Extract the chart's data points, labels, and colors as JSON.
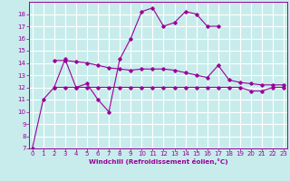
{
  "xlabel": "Windchill (Refroidissement éolien,°C)",
  "bg_color": "#c8ecec",
  "grid_color": "#ffffff",
  "line_color": "#990099",
  "x_values": [
    0,
    1,
    2,
    3,
    4,
    5,
    6,
    7,
    8,
    9,
    10,
    11,
    12,
    13,
    14,
    15,
    16,
    17,
    18,
    19,
    20,
    21,
    22,
    23
  ],
  "line1_y": [
    7.0,
    11.0,
    12.0,
    14.3,
    12.0,
    12.3,
    11.0,
    10.0,
    14.3,
    16.0,
    18.2,
    18.5,
    17.0,
    17.3,
    18.2,
    18.0,
    17.0,
    17.0,
    null,
    null,
    null,
    null,
    null,
    null
  ],
  "line2_y": [
    null,
    null,
    14.2,
    14.2,
    14.1,
    14.0,
    13.8,
    13.6,
    13.5,
    13.4,
    13.5,
    13.5,
    13.5,
    13.4,
    13.2,
    13.0,
    12.8,
    13.8,
    12.6,
    12.4,
    12.3,
    12.2,
    12.2,
    12.2
  ],
  "line3_y": [
    null,
    null,
    12.0,
    12.0,
    12.0,
    12.0,
    12.0,
    12.0,
    12.0,
    12.0,
    12.0,
    12.0,
    12.0,
    12.0,
    12.0,
    12.0,
    12.0,
    12.0,
    12.0,
    12.0,
    11.7,
    11.7,
    12.0,
    12.0
  ],
  "ylim_min": 7,
  "ylim_max": 19,
  "xlim_min": 0,
  "xlim_max": 23,
  "yticks": [
    7,
    8,
    9,
    10,
    11,
    12,
    13,
    14,
    15,
    16,
    17,
    18
  ],
  "xticks": [
    0,
    1,
    2,
    3,
    4,
    5,
    6,
    7,
    8,
    9,
    10,
    11,
    12,
    13,
    14,
    15,
    16,
    17,
    18,
    19,
    20,
    21,
    22,
    23
  ]
}
